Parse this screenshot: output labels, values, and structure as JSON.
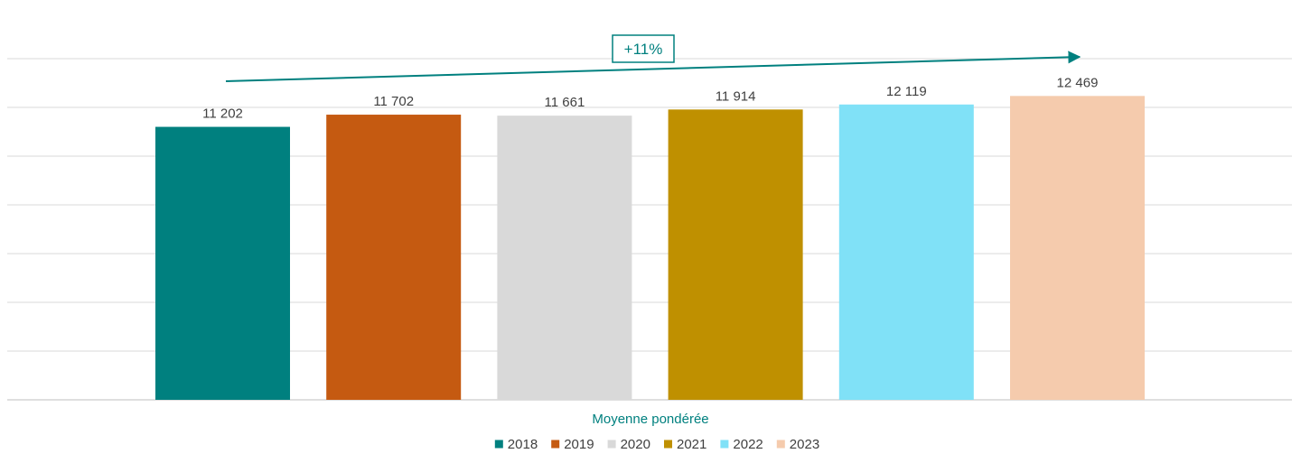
{
  "chart_data": {
    "type": "bar",
    "title": "",
    "xlabel": "",
    "ylabel": "",
    "category": "Moyenne pondérée",
    "ylim": [
      0,
      14000
    ],
    "grid": true,
    "legend_position": "bottom",
    "series": [
      {
        "name": "2018",
        "value": 11202,
        "label": "11 202",
        "color": "#00807f"
      },
      {
        "name": "2019",
        "value": 11702,
        "label": "11 702",
        "color": "#c55a11"
      },
      {
        "name": "2020",
        "value": 11661,
        "label": "11 661",
        "color": "#d9d9d9"
      },
      {
        "name": "2021",
        "value": 11914,
        "label": "11 914",
        "color": "#bf9000"
      },
      {
        "name": "2022",
        "value": 12119,
        "label": "12 119",
        "color": "#80e1f7"
      },
      {
        "name": "2023",
        "value": 12469,
        "label": "12 469",
        "color": "#f5cbad"
      }
    ],
    "annotation": {
      "text": "+11%",
      "color": "#00807f"
    }
  }
}
